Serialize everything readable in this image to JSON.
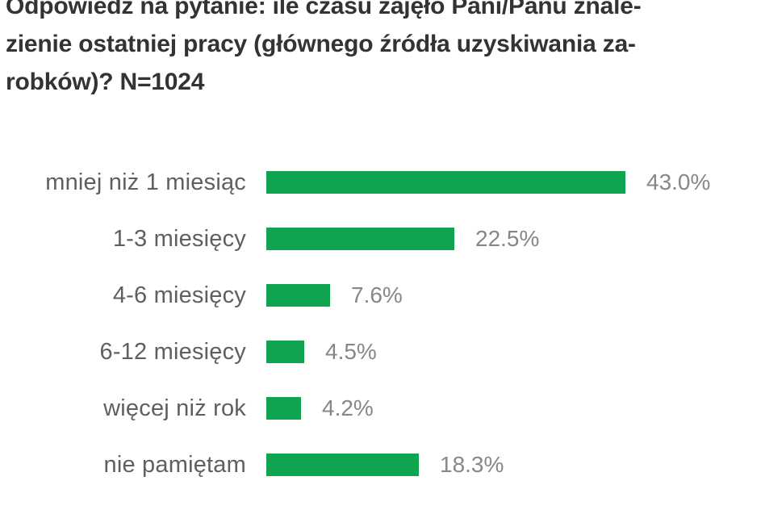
{
  "title": {
    "lines": [
      "Odpowiedź na pytanie: ile czasu zajęło Pani/Panu znale-",
      "zienie ostatniej pracy (głównego źródła uzyskiwania za-",
      "robków)? N=1024"
    ],
    "full_text": "Odpowiedź na pytanie: ile czasu zajęło Pani/Panu znalezienie ostatniej pracy (głównego źródła uzyskiwania zarobków)? N=1024",
    "sample_size": "N=1024"
  },
  "chart_data": {
    "type": "bar",
    "orientation": "horizontal",
    "title": "Odpowiedź na pytanie: ile czasu zajęło Pani/Panu znalezienie ostatniej pracy (głównego źródła uzyskiwania zarobków)? N=1024",
    "categories": [
      "mniej niż 1 miesiąc",
      "1-3 miesięcy",
      "4-6 miesięcy",
      "6-12 miesięcy",
      "więcej niż rok",
      "nie pamiętam"
    ],
    "values": [
      43.0,
      22.5,
      7.6,
      4.5,
      4.2,
      18.3
    ],
    "value_labels": [
      "43.0%",
      "22.5%",
      "7.6%",
      "4.5%",
      "4.2%",
      "18.3%"
    ],
    "xlabel": "",
    "ylabel": "",
    "xlim": [
      0,
      50
    ],
    "grid": false,
    "legend": false,
    "bar_color": "#10A350",
    "category_label_color": "#5F5F5F",
    "value_label_color": "#878787",
    "title_color": "#333333"
  }
}
